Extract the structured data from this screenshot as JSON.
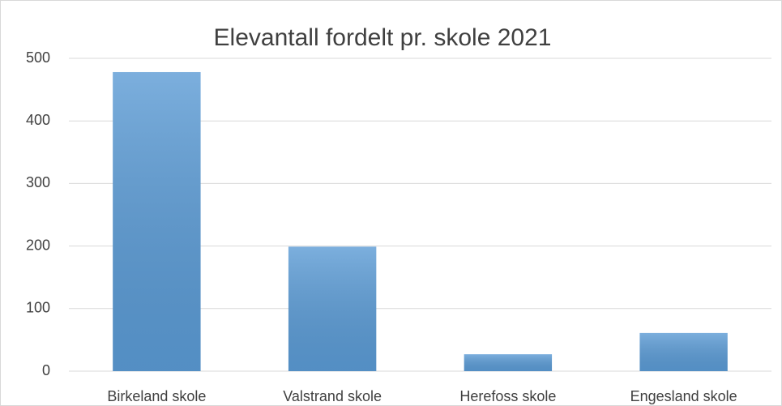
{
  "chart_data": {
    "type": "bar",
    "title": "Elevantall fordelt pr. skole 2021",
    "categories": [
      "Birkeland skole",
      "Valstrand skole",
      "Herefoss skole",
      "Engesland skole"
    ],
    "values": [
      478,
      199,
      27,
      61
    ],
    "color": "#5b9bd5",
    "ylim": [
      0,
      500
    ],
    "yticks": [
      0,
      100,
      200,
      300,
      400,
      500
    ],
    "grid": true
  }
}
